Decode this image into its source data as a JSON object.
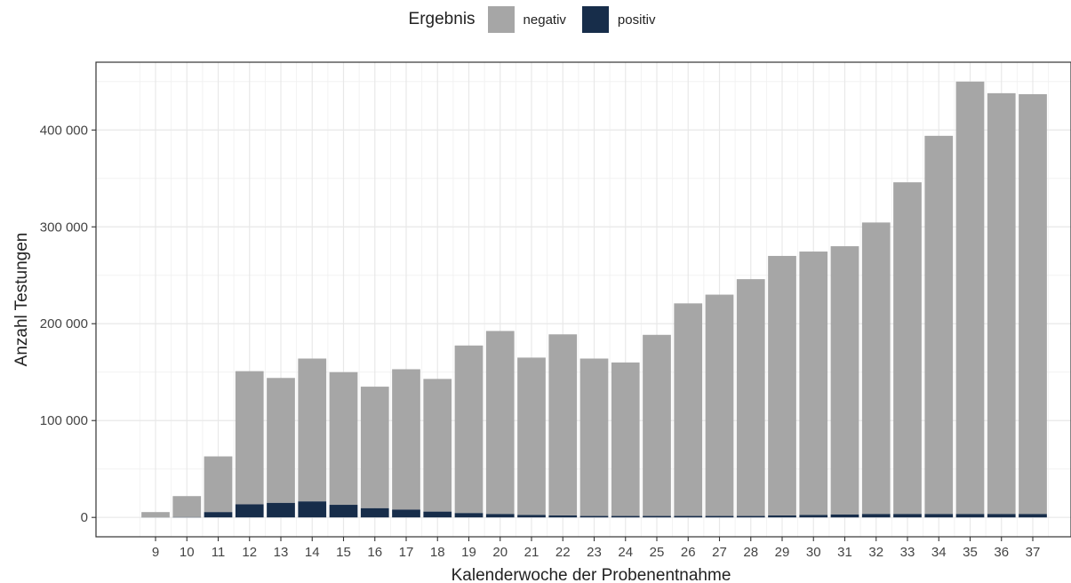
{
  "chart_data": {
    "type": "bar",
    "stacked": true,
    "title": "",
    "xlabel": "Kalenderwoche der Probenentnahme",
    "ylabel": "Anzahl Testungen",
    "ylim": [
      -20000,
      470000
    ],
    "yticks": [
      0,
      100000,
      200000,
      300000,
      400000
    ],
    "ytick_labels": [
      "0",
      "100 000",
      "200 000",
      "300 000",
      "400 000"
    ],
    "grid": true,
    "legend_position": "top",
    "legend_title": "Ergebnis",
    "categories": [
      "9",
      "10",
      "11",
      "12",
      "13",
      "14",
      "15",
      "16",
      "17",
      "18",
      "19",
      "20",
      "21",
      "22",
      "23",
      "24",
      "25",
      "26",
      "27",
      "28",
      "29",
      "30",
      "31",
      "32",
      "33",
      "34",
      "35",
      "36",
      "37"
    ],
    "series": [
      {
        "name": "positiv",
        "color": "#172d4a",
        "values": [
          100,
          300,
          5500,
          13500,
          15000,
          16500,
          13000,
          9500,
          8000,
          6000,
          4500,
          3500,
          2500,
          2000,
          1500,
          1500,
          1500,
          1500,
          1500,
          1500,
          2000,
          2500,
          3000,
          3500,
          3500,
          3500,
          3500,
          3500,
          3500
        ]
      },
      {
        "name": "negativ",
        "color": "#a6a6a6",
        "values": [
          5400,
          21700,
          57500,
          137500,
          129000,
          147500,
          137000,
          125500,
          145000,
          137000,
          173000,
          189000,
          162500,
          187000,
          162500,
          158500,
          187000,
          219500,
          228500,
          244500,
          268000,
          272000,
          277000,
          301000,
          342500,
          390500,
          446500,
          434500,
          433500
        ]
      }
    ]
  }
}
